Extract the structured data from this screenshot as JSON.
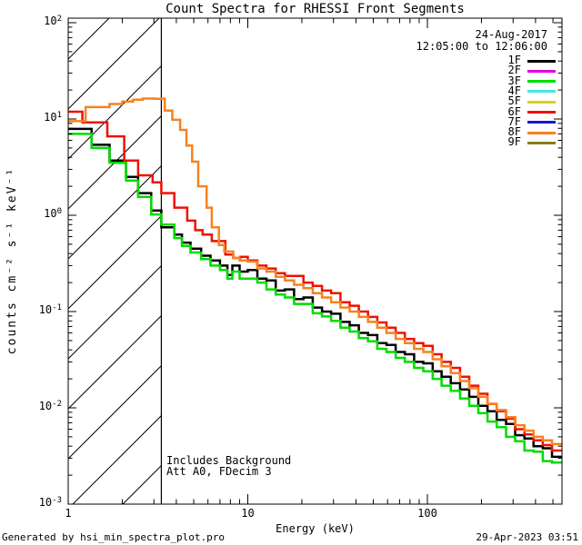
{
  "title": "Count Spectra for RHESSI Front Segments",
  "header": {
    "date": "24-Aug-2017",
    "time_range": "12:05:00 to 12:06:00"
  },
  "legend": [
    {
      "label": "1F",
      "color": "#000000"
    },
    {
      "label": "2F",
      "color": "#e400e4"
    },
    {
      "label": "3F",
      "color": "#00dc00"
    },
    {
      "label": "4F",
      "color": "#45e8e8"
    },
    {
      "label": "5F",
      "color": "#d8d020"
    },
    {
      "label": "6F",
      "color": "#f01000"
    },
    {
      "label": "7F",
      "color": "#1818cc"
    },
    {
      "label": "8F",
      "color": "#f6821f"
    },
    {
      "label": "9F",
      "color": "#8a7d1a"
    }
  ],
  "annotations": {
    "line1": "Includes Background",
    "line2": "Att A0, FDecim 3"
  },
  "footer": {
    "left": "Generated by hsi_min_spectra_plot.pro",
    "right": "29-Apr-2023 03:51"
  },
  "axes": {
    "x": {
      "label": "Energy (keV)",
      "scale": "log",
      "min": 1,
      "max": 561,
      "major_ticks": [
        {
          "value": 1,
          "label": "1"
        },
        {
          "value": 10,
          "label": "10"
        },
        {
          "value": 100,
          "label": "100"
        }
      ]
    },
    "y": {
      "label": "counts cm⁻² s⁻¹ keV⁻¹",
      "scale": "log",
      "tick_exponents": [
        2,
        1,
        0,
        -1,
        -2,
        -3
      ],
      "min": 0.001,
      "max": 112
    }
  },
  "hatch_region": {
    "x_min_kev": 1.0,
    "x_max_kev": 3.3
  },
  "chart_data": {
    "type": "line",
    "style": "histogram-steps",
    "title": "Count Spectra for RHESSI Front Segments",
    "xlabel": "Energy (keV)",
    "ylabel": "counts cm⁻² s⁻¹ keV⁻¹",
    "xscale": "log",
    "yscale": "log",
    "xlim": [
      1,
      561
    ],
    "ylim": [
      0.001,
      112
    ],
    "grid": false,
    "legend_position": "top-right-inside",
    "legend_only_series": [
      "2F",
      "4F",
      "5F",
      "7F",
      "9F"
    ],
    "series": [
      {
        "name": "1F",
        "color": "#000000",
        "points": [
          [
            1.0,
            7.9
          ],
          [
            1.35,
            5.4
          ],
          [
            1.7,
            3.7
          ],
          [
            2.1,
            2.5
          ],
          [
            2.45,
            1.7
          ],
          [
            2.9,
            1.12
          ],
          [
            3.3,
            0.75
          ],
          [
            3.9,
            0.63
          ],
          [
            4.3,
            0.52
          ],
          [
            4.8,
            0.45
          ],
          [
            5.5,
            0.38
          ],
          [
            6.2,
            0.34
          ],
          [
            7.0,
            0.3
          ],
          [
            7.7,
            0.24
          ],
          [
            8.2,
            0.3
          ],
          [
            9.0,
            0.26
          ],
          [
            10,
            0.27
          ],
          [
            11.3,
            0.22
          ],
          [
            12.7,
            0.21
          ],
          [
            14.3,
            0.165
          ],
          [
            16.1,
            0.17
          ],
          [
            18.1,
            0.135
          ],
          [
            20.4,
            0.14
          ],
          [
            23,
            0.11
          ],
          [
            25.9,
            0.1
          ],
          [
            29.1,
            0.095
          ],
          [
            32.8,
            0.078
          ],
          [
            36.9,
            0.072
          ],
          [
            41.5,
            0.06
          ],
          [
            46.7,
            0.057
          ],
          [
            52.6,
            0.047
          ],
          [
            59.2,
            0.045
          ],
          [
            66.6,
            0.038
          ],
          [
            74.9,
            0.036
          ],
          [
            84.3,
            0.03
          ],
          [
            94.9,
            0.029
          ],
          [
            107,
            0.024
          ],
          [
            120,
            0.021
          ],
          [
            135,
            0.018
          ],
          [
            152,
            0.0155
          ],
          [
            171,
            0.013
          ],
          [
            192,
            0.0105
          ],
          [
            216,
            0.0092
          ],
          [
            243,
            0.0075
          ],
          [
            274,
            0.0068
          ],
          [
            308,
            0.0052
          ],
          [
            347,
            0.0048
          ],
          [
            390,
            0.004
          ],
          [
            439,
            0.0038
          ],
          [
            494,
            0.0031
          ]
        ]
      },
      {
        "name": "3F",
        "color": "#00dc00",
        "points": [
          [
            1.0,
            7.0
          ],
          [
            1.35,
            5.0
          ],
          [
            1.7,
            3.5
          ],
          [
            2.1,
            2.3
          ],
          [
            2.45,
            1.55
          ],
          [
            2.9,
            1.02
          ],
          [
            3.3,
            0.8
          ],
          [
            3.9,
            0.58
          ],
          [
            4.3,
            0.48
          ],
          [
            4.8,
            0.41
          ],
          [
            5.5,
            0.35
          ],
          [
            6.2,
            0.3
          ],
          [
            7.0,
            0.27
          ],
          [
            7.7,
            0.22
          ],
          [
            8.2,
            0.26
          ],
          [
            9.0,
            0.22
          ],
          [
            10,
            0.22
          ],
          [
            11.3,
            0.2
          ],
          [
            12.7,
            0.17
          ],
          [
            14.3,
            0.15
          ],
          [
            16.1,
            0.14
          ],
          [
            18.1,
            0.12
          ],
          [
            20.4,
            0.12
          ],
          [
            23,
            0.096
          ],
          [
            25.9,
            0.089
          ],
          [
            29.1,
            0.08
          ],
          [
            32.8,
            0.068
          ],
          [
            36.9,
            0.062
          ],
          [
            41.5,
            0.053
          ],
          [
            46.7,
            0.049
          ],
          [
            52.6,
            0.041
          ],
          [
            59.2,
            0.038
          ],
          [
            66.6,
            0.033
          ],
          [
            74.9,
            0.03
          ],
          [
            84.3,
            0.026
          ],
          [
            94.9,
            0.024
          ],
          [
            107,
            0.02
          ],
          [
            120,
            0.017
          ],
          [
            135,
            0.015
          ],
          [
            152,
            0.0125
          ],
          [
            171,
            0.0105
          ],
          [
            192,
            0.0088
          ],
          [
            216,
            0.0072
          ],
          [
            243,
            0.0063
          ],
          [
            274,
            0.005
          ],
          [
            308,
            0.0045
          ],
          [
            347,
            0.0036
          ],
          [
            390,
            0.0035
          ],
          [
            439,
            0.0028
          ],
          [
            494,
            0.0027
          ]
        ]
      },
      {
        "name": "6F",
        "color": "#f01000",
        "points": [
          [
            1.0,
            11.9
          ],
          [
            1.2,
            9.2
          ],
          [
            1.65,
            6.6
          ],
          [
            2.05,
            3.7
          ],
          [
            2.45,
            2.6
          ],
          [
            2.95,
            2.2
          ],
          [
            3.3,
            1.7
          ],
          [
            3.9,
            1.2
          ],
          [
            4.6,
            0.88
          ],
          [
            5.1,
            0.7
          ],
          [
            5.6,
            0.63
          ],
          [
            6.3,
            0.54
          ],
          [
            7.5,
            0.39
          ],
          [
            8.3,
            0.36
          ],
          [
            9.1,
            0.37
          ],
          [
            10,
            0.34
          ],
          [
            11.3,
            0.3
          ],
          [
            12.7,
            0.28
          ],
          [
            14.3,
            0.25
          ],
          [
            16.1,
            0.235
          ],
          [
            18.1,
            0.235
          ],
          [
            20.4,
            0.2
          ],
          [
            23,
            0.185
          ],
          [
            25.9,
            0.165
          ],
          [
            29.1,
            0.155
          ],
          [
            32.8,
            0.125
          ],
          [
            36.9,
            0.115
          ],
          [
            41.5,
            0.1
          ],
          [
            46.7,
            0.088
          ],
          [
            52.6,
            0.077
          ],
          [
            59.2,
            0.068
          ],
          [
            66.6,
            0.06
          ],
          [
            74.9,
            0.052
          ],
          [
            84.3,
            0.047
          ],
          [
            94.9,
            0.044
          ],
          [
            107,
            0.036
          ],
          [
            120,
            0.03
          ],
          [
            135,
            0.026
          ],
          [
            152,
            0.021
          ],
          [
            171,
            0.017
          ],
          [
            192,
            0.014
          ],
          [
            216,
            0.011
          ],
          [
            243,
            0.0092
          ],
          [
            274,
            0.0077
          ],
          [
            308,
            0.006
          ],
          [
            347,
            0.0053
          ],
          [
            390,
            0.0046
          ],
          [
            439,
            0.0041
          ],
          [
            494,
            0.0036
          ]
        ]
      },
      {
        "name": "8F",
        "color": "#f6821f",
        "points": [
          [
            1.0,
            9.5
          ],
          [
            1.25,
            13.3
          ],
          [
            1.7,
            14.3
          ],
          [
            2.0,
            15.2
          ],
          [
            2.3,
            15.9
          ],
          [
            2.6,
            16.3
          ],
          [
            3.0,
            16.2
          ],
          [
            3.45,
            12.2
          ],
          [
            3.8,
            9.8
          ],
          [
            4.2,
            7.7
          ],
          [
            4.55,
            5.3
          ],
          [
            4.9,
            3.6
          ],
          [
            5.3,
            2.0
          ],
          [
            5.9,
            1.2
          ],
          [
            6.3,
            0.75
          ],
          [
            6.9,
            0.49
          ],
          [
            7.4,
            0.42
          ],
          [
            8.3,
            0.36
          ],
          [
            9.0,
            0.34
          ],
          [
            10,
            0.33
          ],
          [
            11.3,
            0.28
          ],
          [
            12.7,
            0.26
          ],
          [
            14.3,
            0.23
          ],
          [
            16.1,
            0.21
          ],
          [
            18.1,
            0.19
          ],
          [
            20.4,
            0.175
          ],
          [
            23,
            0.155
          ],
          [
            25.9,
            0.14
          ],
          [
            29.1,
            0.125
          ],
          [
            32.8,
            0.11
          ],
          [
            36.9,
            0.1
          ],
          [
            41.5,
            0.088
          ],
          [
            46.7,
            0.078
          ],
          [
            52.6,
            0.068
          ],
          [
            59.2,
            0.06
          ],
          [
            66.6,
            0.052
          ],
          [
            74.9,
            0.047
          ],
          [
            84.3,
            0.041
          ],
          [
            94.9,
            0.038
          ],
          [
            107,
            0.032
          ],
          [
            120,
            0.027
          ],
          [
            135,
            0.023
          ],
          [
            152,
            0.019
          ],
          [
            171,
            0.016
          ],
          [
            192,
            0.013
          ],
          [
            216,
            0.011
          ],
          [
            243,
            0.0095
          ],
          [
            274,
            0.008
          ],
          [
            308,
            0.0066
          ],
          [
            347,
            0.0058
          ],
          [
            390,
            0.005
          ],
          [
            439,
            0.0046
          ],
          [
            494,
            0.0042
          ]
        ]
      }
    ]
  }
}
